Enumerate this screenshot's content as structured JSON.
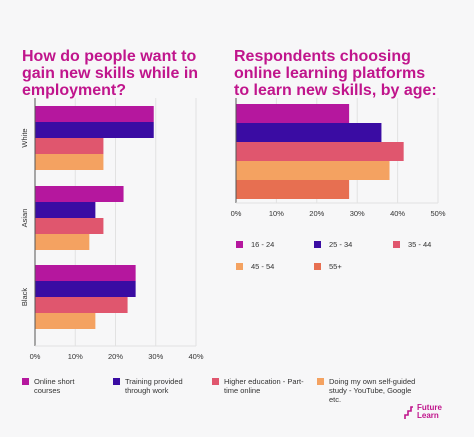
{
  "colors": {
    "title": "#c0158c",
    "online_short_courses": "#b5179e",
    "training_provided": "#3a0ca3",
    "higher_education": "#e0566e",
    "self_guided": "#f4a261",
    "age_16_24": "#b5179e",
    "age_25_34": "#3a0ca3",
    "age_35_44": "#e0566e",
    "age_45_54": "#f4a261",
    "age_55_plus": "#e76f51"
  },
  "chart_data": [
    {
      "type": "bar",
      "orientation": "horizontal",
      "title": "How do people want to gain new skills while in employment?",
      "categories": [
        "White",
        "Asian",
        "Black"
      ],
      "series": [
        {
          "name": "Online short courses",
          "values": [
            29.5,
            22,
            25
          ]
        },
        {
          "name": "Training provided through work",
          "values": [
            29.5,
            15,
            25
          ]
        },
        {
          "name": "Higher education - Part-time online",
          "values": [
            17,
            17,
            23
          ]
        },
        {
          "name": "Doing my own self-guided study - YouTube, Google etc.",
          "values": [
            17,
            13.5,
            15
          ]
        }
      ],
      "xlim": [
        0,
        40
      ],
      "xticks": [
        "0%",
        "10%",
        "20%",
        "30%",
        "40%"
      ],
      "legend": "bottom"
    },
    {
      "type": "bar",
      "orientation": "horizontal",
      "title": "Respondents choosing online learning platforms to learn new skills, by age:",
      "categories": [
        "16 - 24",
        "25 - 34",
        "35 - 44",
        "45 - 54",
        "55+"
      ],
      "values": [
        28,
        36,
        41.5,
        38,
        28
      ],
      "xlim": [
        0,
        50
      ],
      "xticks": [
        "0%",
        "10%",
        "20%",
        "30%",
        "40%",
        "50%"
      ],
      "legend": "bottom"
    }
  ],
  "logo": {
    "line1": "Future",
    "line2": "Learn"
  }
}
